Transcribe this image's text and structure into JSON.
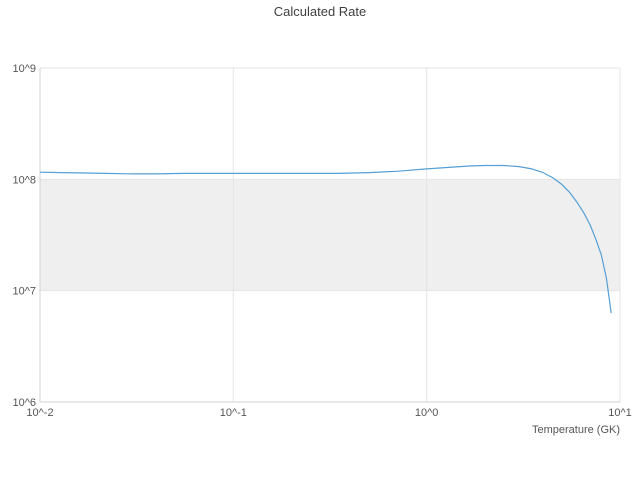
{
  "chart": {
    "title": "Calculated Rate",
    "xlabel": "Temperature (GK)"
  },
  "chart_data": {
    "type": "line",
    "title": "Calculated Rate",
    "xlabel": "Temperature (GK)",
    "ylabel": "",
    "xscale": "log",
    "yscale": "log",
    "xlim": [
      0.01,
      10
    ],
    "ylim": [
      1000000,
      1000000000
    ],
    "grid": true,
    "legend": "none",
    "x_tick_values": [
      0.01,
      0.1,
      1,
      10
    ],
    "x_tick_labels": [
      "10^-2",
      "10^-1",
      "10^0",
      "10^1"
    ],
    "y_tick_values": [
      1000000,
      10000000,
      100000000,
      1000000000
    ],
    "y_tick_labels": [
      "10^6",
      "10^7",
      "10^8",
      "10^9"
    ],
    "band": {
      "ymin": 10000000,
      "ymax": 100000000,
      "color": "#efefef"
    },
    "line_color": "#559fd6",
    "grid_color": "#e5e5e5",
    "spine_color": "#d0d0d0",
    "x": [
      0.01,
      0.013,
      0.017,
      0.022,
      0.03,
      0.04,
      0.055,
      0.075,
      0.1,
      0.13,
      0.18,
      0.25,
      0.35,
      0.5,
      0.7,
      1.0,
      1.3,
      1.7,
      2.0,
      2.5,
      3.0,
      3.5,
      4.0,
      4.5,
      5.0,
      5.5,
      6.0,
      6.5,
      7.0,
      7.5,
      8.0,
      8.5,
      9.0
    ],
    "y": [
      116000000.0,
      115000000.0,
      114000000.0,
      113000000.0,
      112000000.0,
      112000000.0,
      113000000.0,
      113000000.0,
      113000000.0,
      113000000.0,
      113000000.0,
      113000000.0,
      113000000.0,
      115000000.0,
      118000000.0,
      124000000.0,
      128000000.0,
      132000000.0,
      133000000.0,
      133000000.0,
      130000000.0,
      124000000.0,
      115000000.0,
      103000000.0,
      90000000.0,
      76000000.0,
      62000000.0,
      50000000.0,
      39000000.0,
      29000000.0,
      21000000.0,
      13000000.0,
      6300000.0
    ]
  }
}
